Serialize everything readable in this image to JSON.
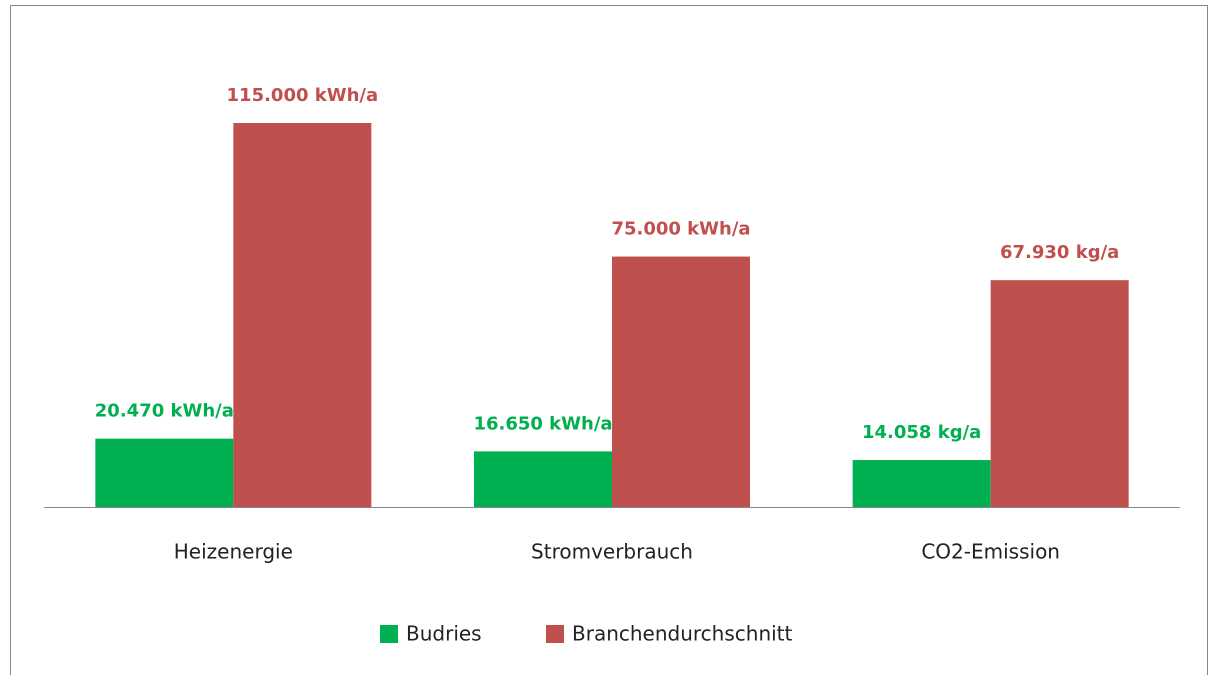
{
  "chart_data": {
    "type": "bar",
    "categories": [
      "Heizenergie",
      "Stromverbrauch",
      "CO2-Emission"
    ],
    "series": [
      {
        "name": "Budries",
        "color": "#00b050",
        "values": [
          20470,
          16650,
          14058
        ],
        "value_labels": [
          "20.470 kWh/a",
          "16.650 kWh/a",
          "14.058 kg/a"
        ]
      },
      {
        "name": "Branchendurchschnitt",
        "color": "#c0504d",
        "values": [
          115000,
          75000,
          67930
        ],
        "value_labels": [
          "115.000 kWh/a",
          "75.000 kWh/a",
          "67.930 kg/a"
        ]
      }
    ],
    "legend": "bottom"
  }
}
